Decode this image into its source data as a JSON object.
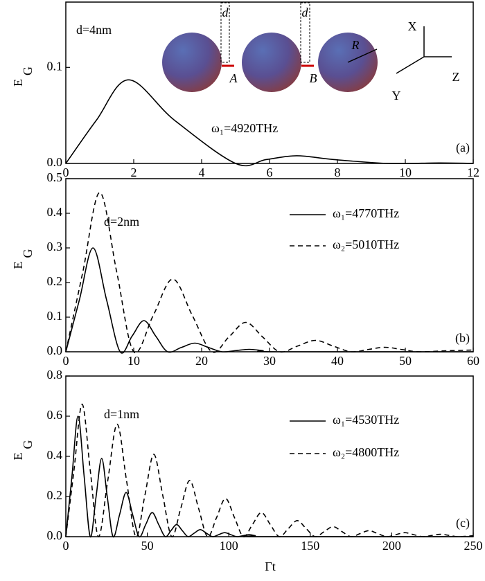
{
  "chart_data": [
    {
      "type": "line",
      "y_label": "E",
      "y_label_sub": "G",
      "annotations": [
        "d=4nm",
        "ω₁=4920THz",
        "(a)"
      ],
      "inset_labels": [
        "d",
        "d",
        "A",
        "B",
        "R",
        "X",
        "Y",
        "Z"
      ],
      "xlim": [
        0,
        12
      ],
      "xticks": [
        0,
        2,
        4,
        6,
        8,
        10,
        12
      ],
      "ylim": [
        0,
        0.168
      ],
      "yticks": [
        {
          "value": 0,
          "label": "0.0"
        },
        0.1
      ],
      "series": [
        {
          "color": "#000000",
          "style": "solid",
          "x": [
            0,
            0.9,
            1.85,
            3.2,
            5,
            5.9,
            6.8,
            7.9,
            9.5,
            11,
            12
          ],
          "values": [
            0,
            0.045,
            0.087,
            0.045,
            0,
            0.004,
            0.008,
            0.004,
            0,
            0.0005,
            0
          ]
        }
      ]
    },
    {
      "type": "line",
      "y_label": "E",
      "y_label_sub": "G",
      "annotations": [
        "d=2nm",
        "(b)"
      ],
      "legend": "upper right",
      "xlim": [
        0,
        60
      ],
      "xticks": [
        0,
        10,
        20,
        30,
        40,
        50,
        60
      ],
      "ylim": [
        0,
        0.5
      ],
      "yticks": [
        {
          "value": 0,
          "label": "0.0"
        },
        0.1,
        0.2,
        0.3,
        0.4,
        0.5
      ],
      "series": [
        {
          "name": "ω₁=4770THz",
          "color": "#000000",
          "style": "solid",
          "x": [
            0,
            2,
            4,
            6,
            8,
            9.75,
            11.5,
            13.25,
            15,
            17,
            19,
            21,
            23,
            25,
            27,
            29,
            31,
            60
          ],
          "values": [
            0,
            0.15,
            0.3,
            0.15,
            0,
            0.045,
            0.09,
            0.045,
            0,
            0.0125,
            0.025,
            0.0125,
            0,
            0.0035,
            0.007,
            0.0035,
            0,
            0
          ]
        },
        {
          "name": "ω₂=5010THz",
          "color": "#000000",
          "style": "dashed",
          "x": [
            0,
            2.5,
            5,
            7.5,
            10,
            12.875,
            15.75,
            18.625,
            21.5,
            24,
            26.5,
            29,
            31.5,
            34.125,
            36.75,
            39.375,
            42,
            44.5,
            47,
            49.5,
            52,
            56,
            60
          ],
          "values": [
            0,
            0.23,
            0.46,
            0.23,
            0,
            0.105,
            0.21,
            0.105,
            0,
            0.0425,
            0.085,
            0.0425,
            0,
            0.0165,
            0.033,
            0.0165,
            0,
            0.0065,
            0.013,
            0.0065,
            0,
            0.003,
            0.005
          ]
        }
      ]
    },
    {
      "type": "line",
      "y_label": "E",
      "y_label_sub": "G",
      "x_label": "Γt",
      "annotations": [
        "d=1nm",
        "(c)"
      ],
      "legend": "upper right",
      "xlim": [
        0,
        250
      ],
      "xticks": [
        0,
        50,
        100,
        150,
        200,
        250
      ],
      "ylim": [
        0,
        0.8
      ],
      "yticks": [
        {
          "value": 0,
          "label": "0.0"
        },
        0.2,
        0.4,
        0.6,
        0.8
      ],
      "series": [
        {
          "name": "ω₁=4530THz",
          "color": "#000000",
          "style": "solid",
          "x": [
            0,
            3.75,
            7.5,
            11.25,
            15,
            18.5,
            22,
            25.5,
            29,
            33,
            37,
            41,
            45,
            49,
            53,
            57,
            61,
            64.5,
            68,
            71.5,
            75,
            78.75,
            82.5,
            86.25,
            90,
            93.75,
            97.5,
            101.25,
            105,
            108.75,
            112.5,
            116.25,
            120,
            250
          ],
          "values": [
            0,
            0.3,
            0.6,
            0.3,
            0,
            0.195,
            0.39,
            0.195,
            0,
            0.11,
            0.22,
            0.11,
            0,
            0.06,
            0.12,
            0.06,
            0,
            0.03,
            0.06,
            0.03,
            0,
            0.0175,
            0.035,
            0.0175,
            0,
            0.01,
            0.02,
            0.01,
            0,
            0.005,
            0.01,
            0.005,
            0,
            0
          ]
        },
        {
          "name": "ω₂=4800THz",
          "color": "#000000",
          "style": "dashed",
          "x": [
            0,
            5,
            10,
            15,
            20,
            25.75,
            31.5,
            37.25,
            43,
            48.5,
            54,
            59.5,
            65,
            70.5,
            76,
            81.5,
            87,
            92.5,
            98,
            103.5,
            109,
            114.5,
            120,
            125.5,
            131,
            136.5,
            142,
            147.5,
            153,
            158.5,
            164,
            169.5,
            175,
            180.5,
            186,
            191.5,
            197,
            202.5,
            208,
            213.5,
            219,
            224.5,
            230,
            235.5,
            241,
            250
          ],
          "values": [
            0,
            0.33,
            0.66,
            0.33,
            0,
            0.28,
            0.56,
            0.28,
            0,
            0.205,
            0.41,
            0.205,
            0,
            0.14,
            0.28,
            0.14,
            0,
            0.095,
            0.19,
            0.095,
            0,
            0.06,
            0.12,
            0.06,
            0,
            0.04,
            0.08,
            0.04,
            0,
            0.025,
            0.05,
            0.025,
            0,
            0.015,
            0.03,
            0.015,
            0,
            0.01,
            0.02,
            0.01,
            0,
            0.006,
            0.012,
            0.006,
            0,
            0.005
          ]
        }
      ]
    }
  ]
}
